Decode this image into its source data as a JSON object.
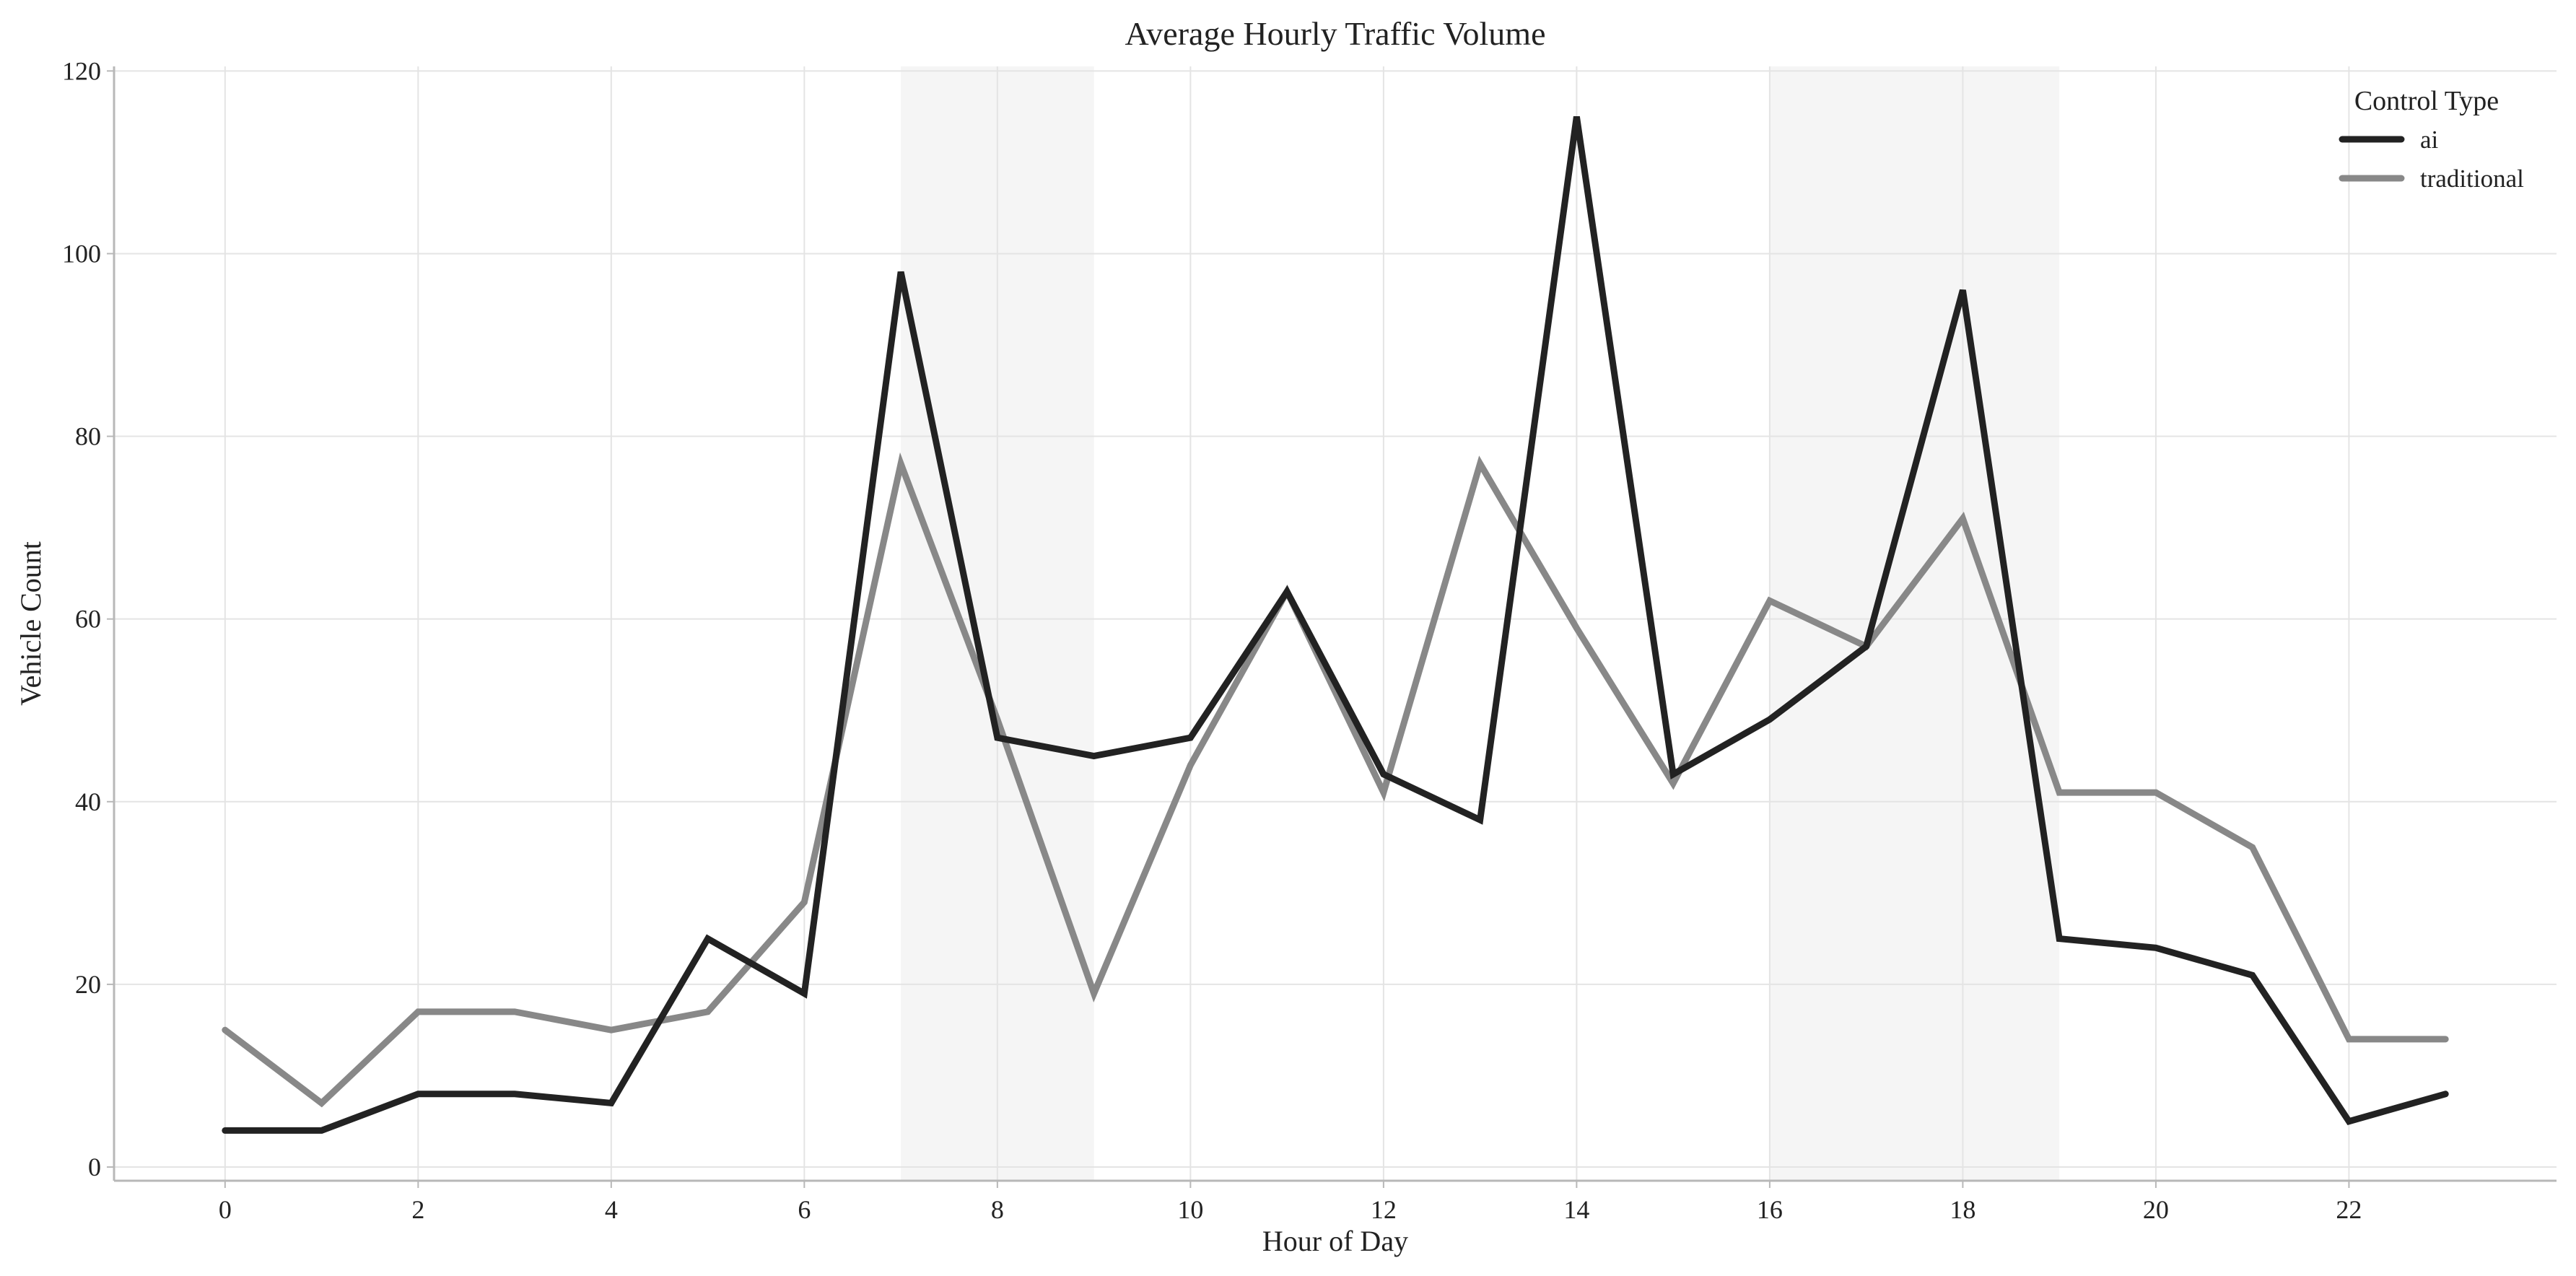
{
  "chart_data": {
    "type": "line",
    "title": "Average Hourly Traffic Volume",
    "xlabel": "Hour of Day",
    "ylabel": "Vehicle Count",
    "xlim": [
      -1.15,
      24.15
    ],
    "ylim": [
      -1.5,
      120.5
    ],
    "x": [
      0,
      1,
      2,
      3,
      4,
      5,
      6,
      7,
      8,
      9,
      10,
      11,
      12,
      13,
      14,
      15,
      16,
      17,
      18,
      19,
      20,
      21,
      22,
      23
    ],
    "xticks": [
      0,
      2,
      4,
      6,
      8,
      10,
      12,
      14,
      16,
      18,
      20,
      22
    ],
    "yticks": [
      0,
      20,
      40,
      60,
      80,
      100,
      120
    ],
    "grid": true,
    "shaded_ranges": [
      [
        7,
        9
      ],
      [
        16,
        19
      ]
    ],
    "legend": {
      "title": "Control Type",
      "placement": "top-right"
    },
    "series": [
      {
        "name": "ai",
        "color": "#222222",
        "values": [
          4,
          4,
          8,
          8,
          7,
          25,
          19,
          98,
          47,
          45,
          47,
          63,
          43,
          38,
          115,
          43,
          49,
          57,
          96,
          25,
          24,
          21,
          5,
          8
        ]
      },
      {
        "name": "traditional",
        "color": "#888888",
        "values": [
          15,
          7,
          17,
          17,
          15,
          17,
          29,
          77,
          49,
          19,
          44,
          63,
          41,
          77,
          59,
          42,
          62,
          57,
          71,
          41,
          41,
          35,
          14,
          14
        ]
      }
    ]
  }
}
